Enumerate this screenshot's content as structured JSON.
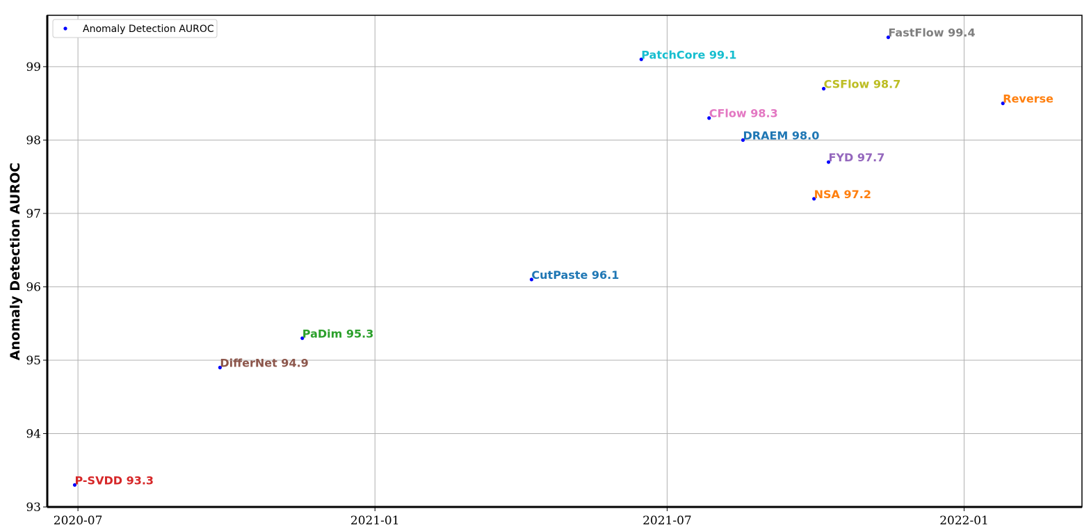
{
  "chart_data": {
    "type": "scatter",
    "ylabel": "Anomaly Detection AUROC",
    "xlabel": "",
    "ylim": [
      93,
      99.7
    ],
    "xlim": [
      "2020-06-12",
      "2022-03-15"
    ],
    "x_ticks": [
      "2020-07",
      "2021-01",
      "2021-07",
      "2022-01"
    ],
    "y_ticks": [
      93,
      94,
      95,
      96,
      97,
      98,
      99
    ],
    "grid": true,
    "legend": {
      "placement": "top-left",
      "entries": [
        "Anomaly Detection AUROC"
      ]
    },
    "marker_color": "#0000ff",
    "series": [
      {
        "name": "Anomaly Detection AUROC",
        "points": [
          {
            "label": "P-SVDD 93.3",
            "date": "2020-06-29",
            "value": 93.3,
            "color": "#d62728"
          },
          {
            "label": "DifferNet 94.9",
            "date": "2020-09-27",
            "value": 94.9,
            "color": "#8c564b"
          },
          {
            "label": "PaDim 95.3",
            "date": "2020-11-17",
            "value": 95.3,
            "color": "#2ca02c"
          },
          {
            "label": "CutPaste 96.1",
            "date": "2021-04-08",
            "value": 96.1,
            "color": "#1f77b4"
          },
          {
            "label": "PatchCore 99.1",
            "date": "2021-06-15",
            "value": 99.1,
            "color": "#17becf"
          },
          {
            "label": "CFlow 98.3",
            "date": "2021-07-27",
            "value": 98.3,
            "color": "#e377c2"
          },
          {
            "label": "DRAEM 98.0",
            "date": "2021-08-17",
            "value": 98.0,
            "color": "#1f77b4"
          },
          {
            "label": "NSA 97.2",
            "date": "2021-09-30",
            "value": 97.2,
            "color": "#ff7f0e"
          },
          {
            "label": "CSFlow 98.7",
            "date": "2021-10-06",
            "value": 98.7,
            "color": "#bcbd22"
          },
          {
            "label": "FYD 97.7",
            "date": "2021-10-09",
            "value": 97.7,
            "color": "#9467bd"
          },
          {
            "label": "FastFlow 99.4",
            "date": "2021-11-15",
            "value": 99.4,
            "color": "#7f7f7f"
          },
          {
            "label": "Reverse",
            "date": "2022-01-25",
            "value": 98.5,
            "color": "#ff7f0e"
          }
        ]
      }
    ]
  }
}
